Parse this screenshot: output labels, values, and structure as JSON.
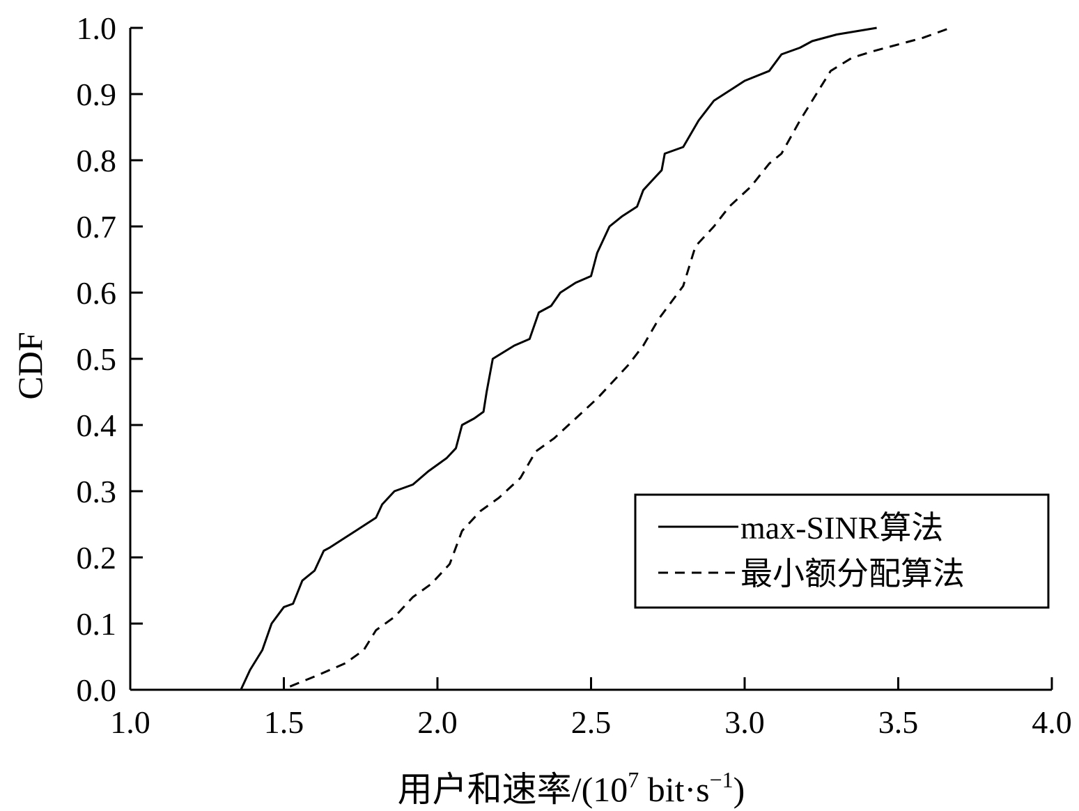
{
  "chart_data": {
    "type": "line",
    "title": "",
    "xlabel": "用户和速率/(10",
    "xlabel_exponent": "7",
    "xlabel_unit_main": " bit·s",
    "xlabel_unit_exponent": "−1",
    "xlabel_close": ")",
    "ylabel": "CDF",
    "xlim": [
      1.0,
      4.0
    ],
    "ylim": [
      0.0,
      1.0
    ],
    "xticks": [
      "1.0",
      "1.5",
      "2.0",
      "2.5",
      "3.0",
      "3.5",
      "4.0"
    ],
    "yticks": [
      "0.0",
      "0.1",
      "0.2",
      "0.3",
      "0.4",
      "0.5",
      "0.6",
      "0.7",
      "0.8",
      "0.9",
      "1.0"
    ],
    "grid": false,
    "legend_position": "bottom-right",
    "series": [
      {
        "name": "max-SINR算法",
        "style": "solid",
        "color": "#000000",
        "points": [
          [
            1.36,
            0.0
          ],
          [
            1.39,
            0.03
          ],
          [
            1.43,
            0.06
          ],
          [
            1.46,
            0.1
          ],
          [
            1.5,
            0.125
          ],
          [
            1.53,
            0.13
          ],
          [
            1.56,
            0.165
          ],
          [
            1.6,
            0.18
          ],
          [
            1.63,
            0.21
          ],
          [
            1.65,
            0.215
          ],
          [
            1.7,
            0.23
          ],
          [
            1.75,
            0.245
          ],
          [
            1.8,
            0.26
          ],
          [
            1.82,
            0.28
          ],
          [
            1.86,
            0.3
          ],
          [
            1.92,
            0.31
          ],
          [
            1.97,
            0.33
          ],
          [
            2.03,
            0.35
          ],
          [
            2.06,
            0.365
          ],
          [
            2.08,
            0.4
          ],
          [
            2.12,
            0.41
          ],
          [
            2.15,
            0.42
          ],
          [
            2.16,
            0.45
          ],
          [
            2.18,
            0.5
          ],
          [
            2.25,
            0.52
          ],
          [
            2.3,
            0.53
          ],
          [
            2.33,
            0.57
          ],
          [
            2.37,
            0.58
          ],
          [
            2.4,
            0.6
          ],
          [
            2.45,
            0.615
          ],
          [
            2.5,
            0.625
          ],
          [
            2.52,
            0.66
          ],
          [
            2.56,
            0.7
          ],
          [
            2.6,
            0.715
          ],
          [
            2.65,
            0.73
          ],
          [
            2.67,
            0.755
          ],
          [
            2.7,
            0.77
          ],
          [
            2.73,
            0.785
          ],
          [
            2.74,
            0.81
          ],
          [
            2.8,
            0.82
          ],
          [
            2.85,
            0.86
          ],
          [
            2.9,
            0.89
          ],
          [
            2.95,
            0.905
          ],
          [
            3.0,
            0.92
          ],
          [
            3.08,
            0.935
          ],
          [
            3.12,
            0.96
          ],
          [
            3.18,
            0.97
          ],
          [
            3.22,
            0.98
          ],
          [
            3.3,
            0.99
          ],
          [
            3.43,
            1.0
          ]
        ]
      },
      {
        "name": "最小额分配算法",
        "style": "dashed",
        "color": "#000000",
        "points": [
          [
            1.52,
            0.005
          ],
          [
            1.6,
            0.02
          ],
          [
            1.7,
            0.04
          ],
          [
            1.76,
            0.06
          ],
          [
            1.8,
            0.09
          ],
          [
            1.86,
            0.11
          ],
          [
            1.92,
            0.14
          ],
          [
            1.98,
            0.16
          ],
          [
            2.04,
            0.19
          ],
          [
            2.08,
            0.24
          ],
          [
            2.14,
            0.27
          ],
          [
            2.2,
            0.29
          ],
          [
            2.27,
            0.32
          ],
          [
            2.32,
            0.36
          ],
          [
            2.38,
            0.38
          ],
          [
            2.45,
            0.41
          ],
          [
            2.52,
            0.44
          ],
          [
            2.58,
            0.47
          ],
          [
            2.62,
            0.49
          ],
          [
            2.67,
            0.52
          ],
          [
            2.72,
            0.56
          ],
          [
            2.8,
            0.61
          ],
          [
            2.84,
            0.67
          ],
          [
            2.9,
            0.7
          ],
          [
            2.95,
            0.73
          ],
          [
            3.02,
            0.76
          ],
          [
            3.08,
            0.795
          ],
          [
            3.12,
            0.81
          ],
          [
            3.18,
            0.86
          ],
          [
            3.24,
            0.905
          ],
          [
            3.28,
            0.935
          ],
          [
            3.35,
            0.955
          ],
          [
            3.42,
            0.965
          ],
          [
            3.5,
            0.975
          ],
          [
            3.58,
            0.985
          ],
          [
            3.67,
            1.0
          ]
        ]
      }
    ]
  }
}
